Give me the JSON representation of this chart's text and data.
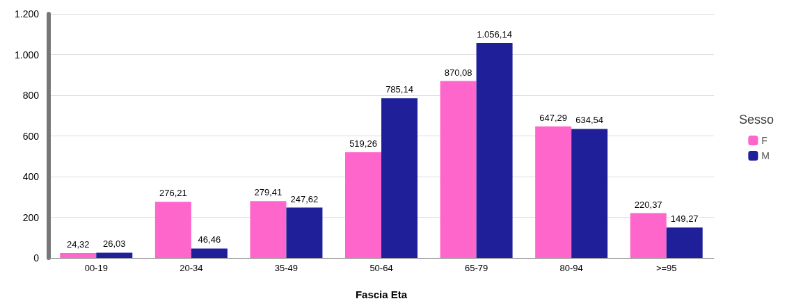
{
  "chart_data": {
    "type": "bar",
    "xlabel": "Fascia Eta",
    "legend_title": "Sesso",
    "legend": "right",
    "grid": "y",
    "categories": [
      "00-19",
      "20-34",
      "35-49",
      "50-64",
      "65-79",
      "80-94",
      ">=95"
    ],
    "series": [
      {
        "name": "F",
        "color": "#ff66cc",
        "values": [
          24.32,
          276.21,
          279.41,
          519.26,
          870.08,
          647.29,
          220.37
        ],
        "value_labels": [
          "24,32",
          "276,21",
          "279,41",
          "519,26",
          "870,08",
          "647,29",
          "220,37"
        ]
      },
      {
        "name": "M",
        "color": "#1f1f99",
        "values": [
          26.03,
          46.46,
          247.62,
          785.14,
          1056.14,
          634.54,
          149.27
        ],
        "value_labels": [
          "26,03",
          "46,46",
          "247,62",
          "785,14",
          "1.056,14",
          "634,54",
          "149,27"
        ]
      }
    ],
    "ylim": [
      0,
      1200
    ],
    "yticks": [
      0,
      200,
      400,
      600,
      800,
      {
        "value": 1000,
        "label": "1.000"
      },
      {
        "value": 1200,
        "label": "1.200"
      }
    ]
  }
}
